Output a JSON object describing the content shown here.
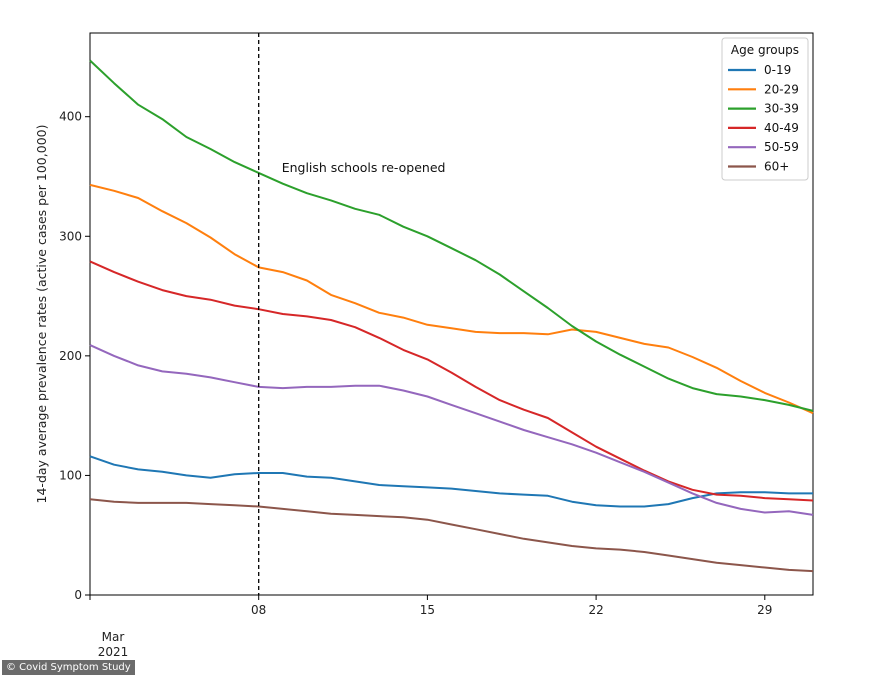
{
  "chart_data": {
    "type": "line",
    "xlabel": "",
    "ylabel": "14-day average prevalence rates (active cases per 100,000)",
    "ylim": [
      0,
      470
    ],
    "xlim": [
      1,
      31
    ],
    "y_ticks": [
      0,
      100,
      200,
      300,
      400
    ],
    "x_ticks": [
      {
        "day": 1,
        "label": "Mar",
        "sublabel": "2021"
      },
      {
        "day": 8,
        "label": "08"
      },
      {
        "day": 15,
        "label": "15"
      },
      {
        "day": 22,
        "label": "22"
      },
      {
        "day": 29,
        "label": "29"
      }
    ],
    "x_day_offset": 1,
    "annotation": {
      "day": 8,
      "text": "English schools re-opened"
    },
    "legend": {
      "title": "Age groups",
      "placement": "top-right"
    },
    "series": [
      {
        "name": "0-19",
        "color": "#1f77b4",
        "values": [
          116,
          109,
          105,
          103,
          100,
          98,
          101,
          102,
          102,
          99,
          98,
          95,
          92,
          91,
          90,
          89,
          87,
          85,
          84,
          83,
          78,
          75,
          74,
          74,
          76,
          81,
          85,
          86,
          86,
          85,
          85
        ]
      },
      {
        "name": "20-29",
        "color": "#ff7f0e",
        "values": [
          343,
          338,
          332,
          321,
          311,
          299,
          285,
          274,
          270,
          263,
          251,
          244,
          236,
          232,
          226,
          223,
          220,
          219,
          219,
          218,
          222,
          220,
          215,
          210,
          207,
          199,
          190,
          179,
          169,
          161,
          152
        ]
      },
      {
        "name": "30-39",
        "color": "#2ca02c",
        "values": [
          447,
          428,
          410,
          398,
          383,
          373,
          362,
          353,
          344,
          336,
          330,
          323,
          318,
          308,
          300,
          290,
          280,
          268,
          254,
          240,
          225,
          212,
          201,
          191,
          181,
          173,
          168,
          166,
          163,
          159,
          154
        ]
      },
      {
        "name": "40-49",
        "color": "#d62728",
        "values": [
          279,
          270,
          262,
          255,
          250,
          247,
          242,
          239,
          235,
          233,
          230,
          224,
          215,
          205,
          197,
          186,
          174,
          163,
          155,
          148,
          136,
          124,
          114,
          104,
          95,
          88,
          84,
          83,
          81,
          80,
          79
        ]
      },
      {
        "name": "50-59",
        "color": "#9467bd",
        "values": [
          209,
          200,
          192,
          187,
          185,
          182,
          178,
          174,
          173,
          174,
          174,
          175,
          175,
          171,
          166,
          159,
          152,
          145,
          138,
          132,
          126,
          119,
          111,
          103,
          94,
          85,
          77,
          72,
          69,
          70,
          67
        ]
      },
      {
        "name": "60+",
        "color": "#8c564b",
        "values": [
          80,
          78,
          77,
          77,
          77,
          76,
          75,
          74,
          72,
          70,
          68,
          67,
          66,
          65,
          63,
          59,
          55,
          51,
          47,
          44,
          41,
          39,
          38,
          36,
          33,
          30,
          27,
          25,
          23,
          21,
          20
        ]
      }
    ]
  },
  "credit": "© Covid Symptom Study"
}
